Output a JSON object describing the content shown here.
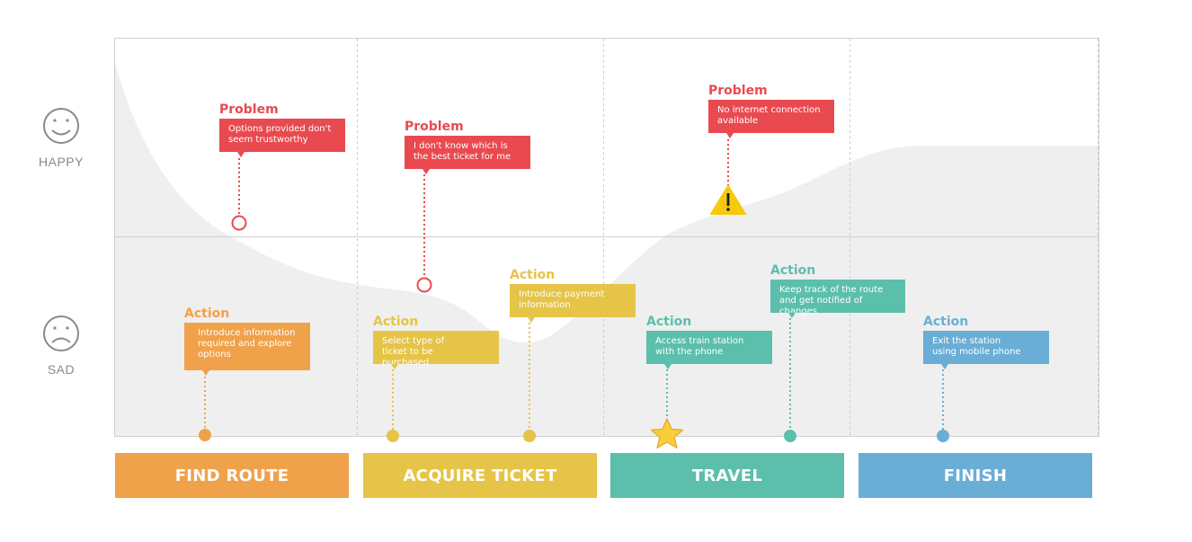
{
  "moods": {
    "happy": "HAPPY",
    "sad": "SAD"
  },
  "colors": {
    "problem": "#e84a4f",
    "orange": "#f0a24a",
    "yellow": "#e6c447",
    "teal": "#5bbfab",
    "blue": "#6aaed6",
    "curve_fill": "#efefef",
    "grid": "#cccccc"
  },
  "stages": [
    {
      "label": "FIND ROUTE",
      "color": "#f0a24a"
    },
    {
      "label": "ACQUIRE TICKET",
      "color": "#e6c447"
    },
    {
      "label": "TRAVEL",
      "color": "#5bbfab"
    },
    {
      "label": "FINISH",
      "color": "#6aaed6"
    }
  ],
  "problems": [
    {
      "tag": "Problem",
      "text": "Options provided don't seem trustworthy",
      "marker": "circle"
    },
    {
      "tag": "Problem",
      "text": "I don't know which is the best ticket for me",
      "marker": "circle"
    },
    {
      "tag": "Problem",
      "text": "No internet connection available",
      "marker": "warning-icon"
    }
  ],
  "actions": [
    {
      "tag": "Action",
      "text": "Introduce information required and explore options",
      "color": "#f0a24a",
      "marker": "dot"
    },
    {
      "tag": "Action",
      "text": "Select type of ticket to be purchased",
      "color": "#e6c447",
      "marker": "dot"
    },
    {
      "tag": "Action",
      "text": "Introduce payment information",
      "color": "#e6c447",
      "marker": "dot"
    },
    {
      "tag": "Action",
      "text": "Access train station with the phone",
      "color": "#5bbfab",
      "marker": "star-icon"
    },
    {
      "tag": "Action",
      "text": "Keep track of the route and get notified of changes",
      "color": "#5bbfab",
      "marker": "dot"
    },
    {
      "tag": "Action",
      "text": "Exit the station using mobile phone",
      "color": "#6aaed6",
      "marker": "dot"
    }
  ]
}
